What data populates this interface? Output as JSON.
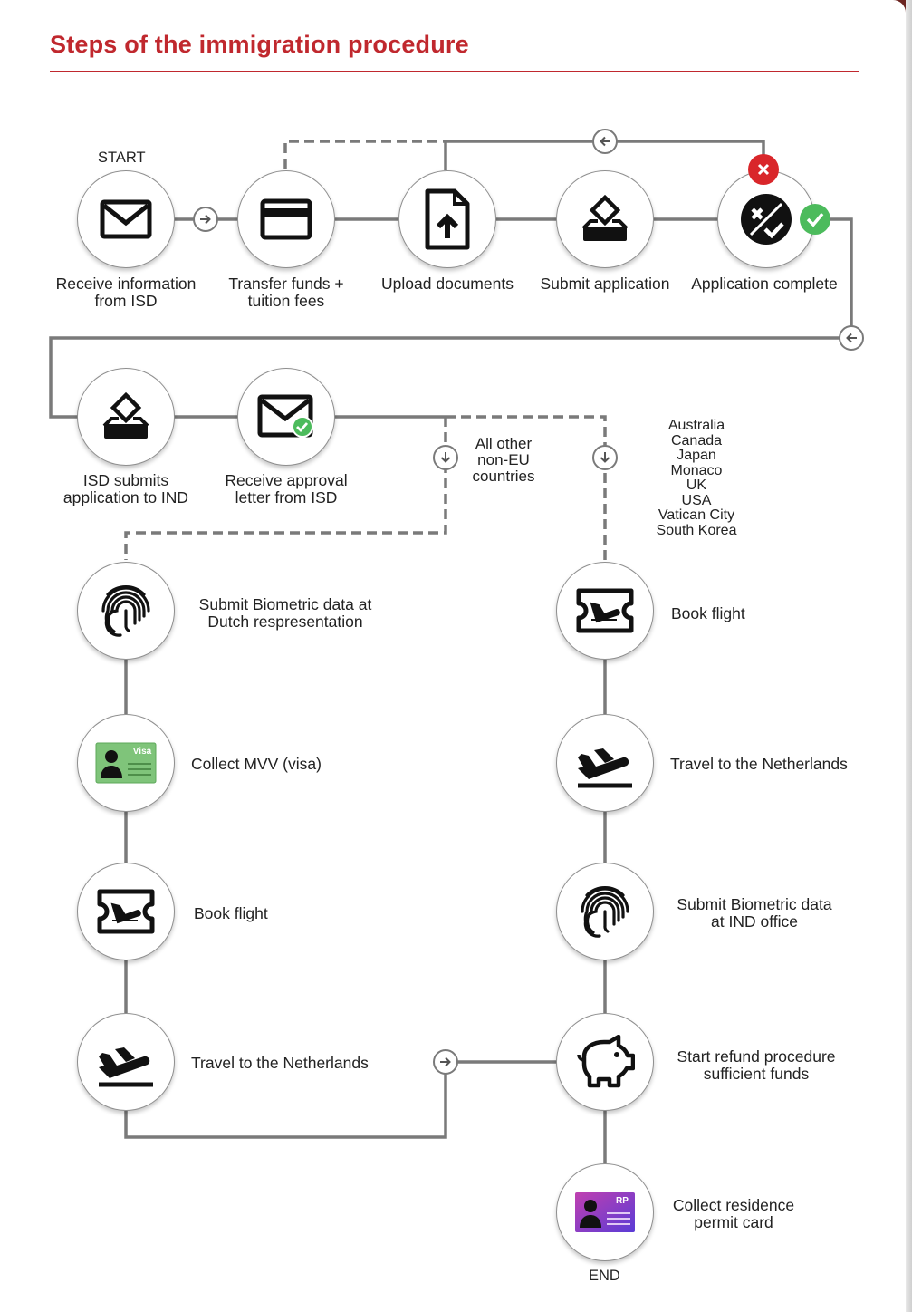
{
  "header": {
    "title": "Steps of the immigration procedure"
  },
  "flow": {
    "start_label": "START",
    "end_label": "END",
    "top_row": [
      {
        "label_1": "Receive information",
        "label_2": "from ISD",
        "icon": "envelope-icon"
      },
      {
        "label_1": "Transfer funds +",
        "label_2": "tuition fees",
        "icon": "credit-card-icon"
      },
      {
        "label_1": "Upload documents",
        "icon": "upload-file-icon"
      },
      {
        "label_1": "Submit application",
        "icon": "ballot-box-icon"
      },
      {
        "label_1": "Application complete",
        "icon": "checked-stamp-icon"
      }
    ],
    "second_row": [
      {
        "label_1": "ISD submits",
        "label_2": "application to IND",
        "icon": "ballot-box-icon"
      },
      {
        "label_1": "Receive approval",
        "label_2": "letter from ISD",
        "icon": "envelope-check-icon"
      }
    ],
    "branch_other": {
      "line_1": "All other",
      "line_2": "non-EU",
      "line_3": "countries"
    },
    "branch_countries": [
      "Australia",
      "Canada",
      "Japan",
      "Monaco",
      "UK",
      "USA",
      "Vatican City",
      "South Korea"
    ],
    "left_column": [
      {
        "label_1": "Submit Biometric data at",
        "label_2": "Dutch respresentation",
        "icon": "fingerprint-icon"
      },
      {
        "label_1": "Collect MVV (visa)",
        "icon": "visa-card-icon",
        "card_text": "Visa"
      },
      {
        "label_1": "Book flight",
        "icon": "flight-ticket-icon"
      },
      {
        "label_1": "Travel to the Netherlands",
        "icon": "plane-takeoff-icon"
      }
    ],
    "right_column": [
      {
        "label_1": "Book flight",
        "icon": "flight-ticket-icon"
      },
      {
        "label_1": "Travel to the Netherlands",
        "icon": "plane-takeoff-icon"
      },
      {
        "label_1": "Submit Biometric data",
        "label_2": "at IND office",
        "icon": "fingerprint-icon"
      },
      {
        "label_1": "Start refund procedure",
        "label_2": "sufficient funds",
        "icon": "piggy-bank-icon"
      },
      {
        "label_1": "Collect residence",
        "label_2": "permit card",
        "icon": "residence-permit-icon",
        "card_text": "RP"
      }
    ]
  },
  "colors": {
    "title": "#c0282e",
    "connector": "#7a7a7a",
    "reject": "#d9262a",
    "approve": "#4cbb5c",
    "visa_card": "#7fc47a",
    "permit_card": "#9b4fd6"
  }
}
